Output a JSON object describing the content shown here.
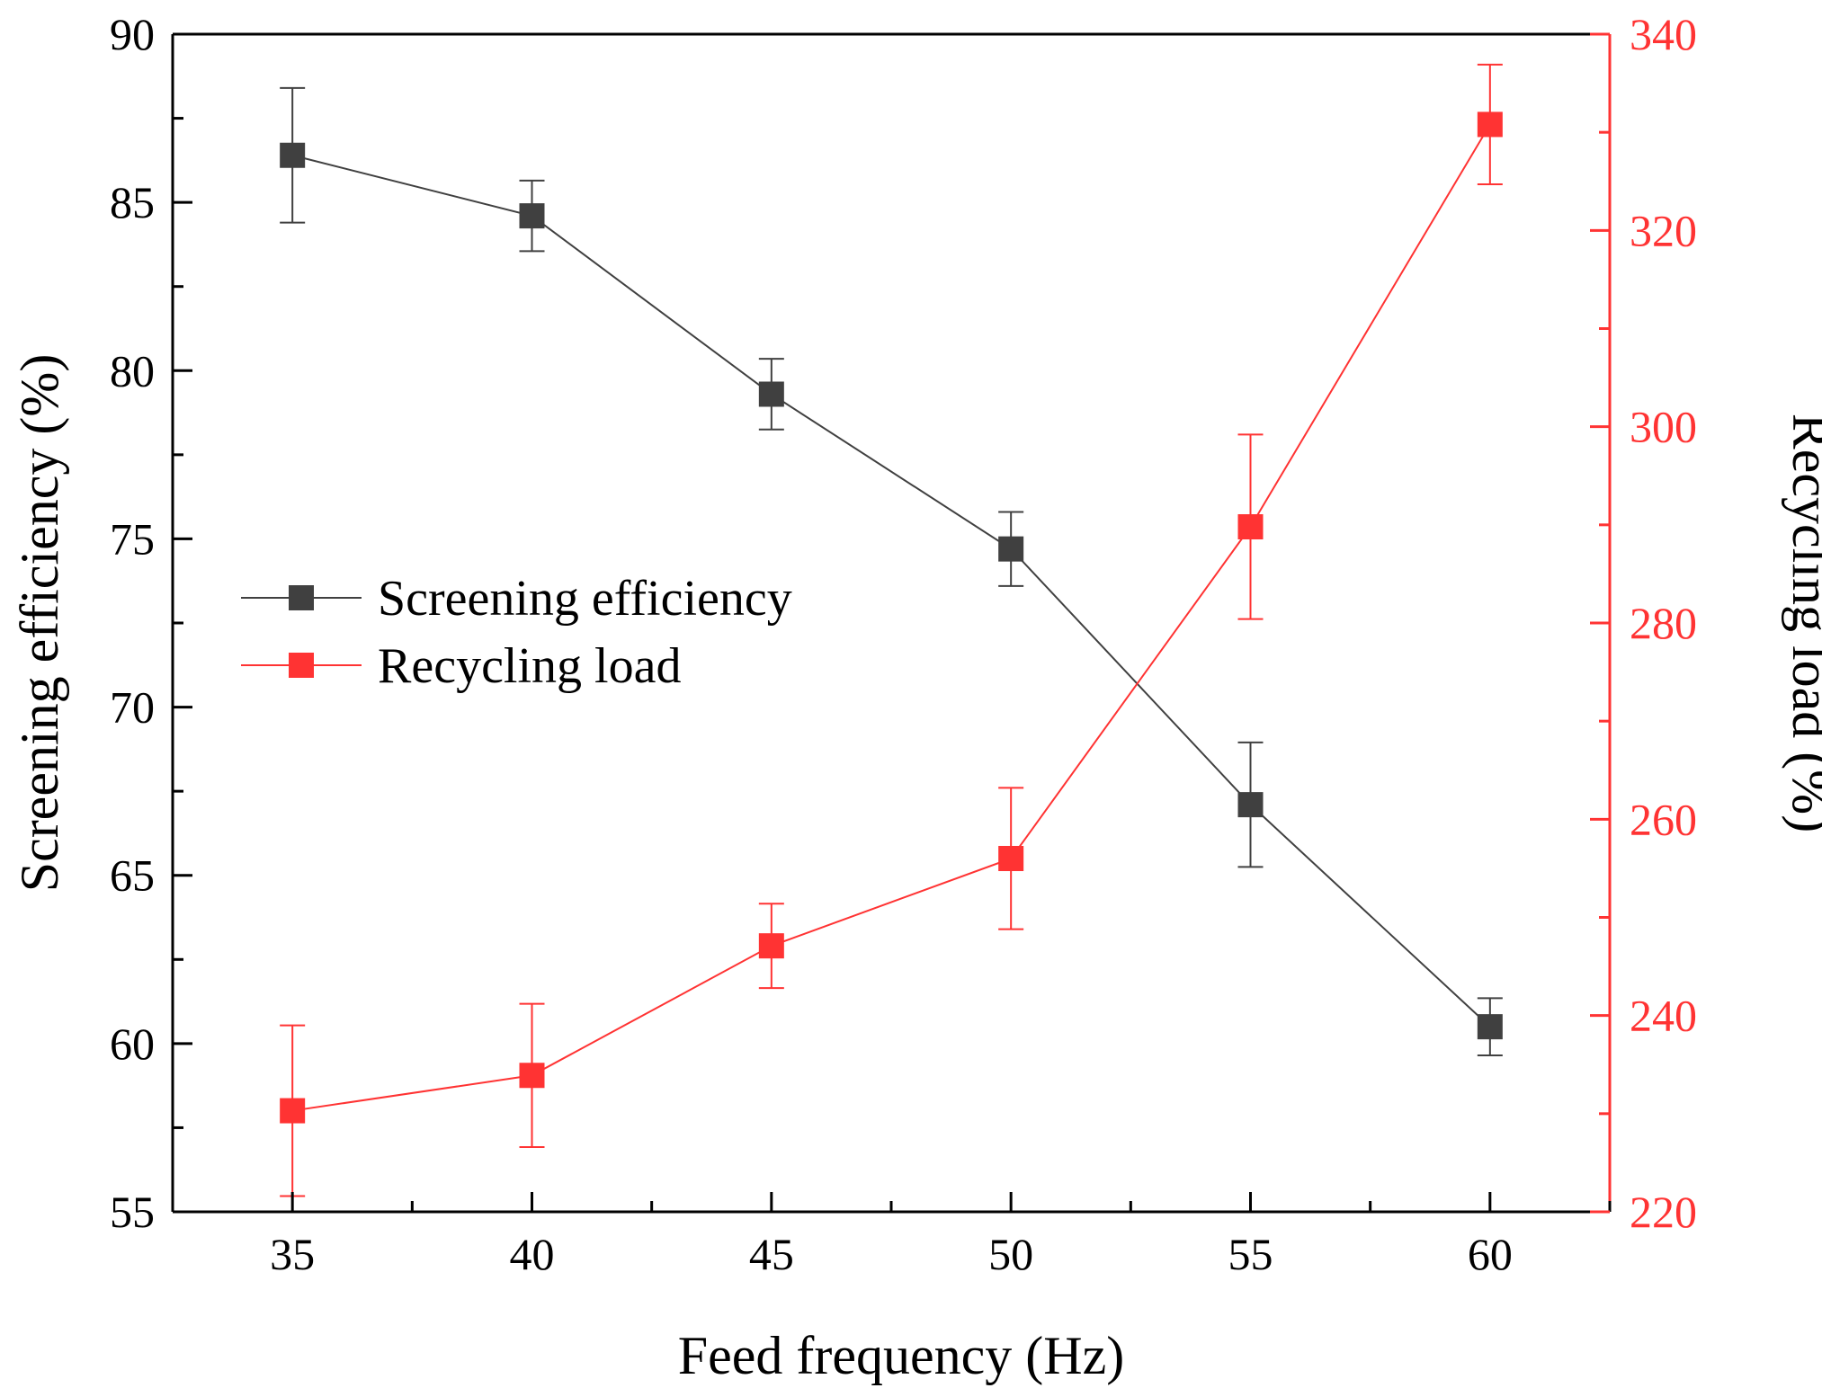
{
  "chart_data": {
    "type": "line",
    "x": [
      35,
      40,
      45,
      50,
      55,
      60
    ],
    "xlabel": "Feed frequency (Hz)",
    "xlim": [
      32.5,
      62.5
    ],
    "xticks": [
      35,
      40,
      45,
      50,
      55,
      60
    ],
    "ylabel_left": "Screening efficiency (%)",
    "ylim_left": [
      55,
      90
    ],
    "yticks_left": [
      55,
      60,
      65,
      70,
      75,
      80,
      85,
      90
    ],
    "ylabel_right": "Recycling load (%)",
    "ylim_right": [
      220,
      340
    ],
    "yticks_right": [
      220,
      240,
      260,
      280,
      300,
      320,
      340
    ],
    "grid": false,
    "legend_position": "center-left",
    "series": [
      {
        "name": "Screening efficiency",
        "axis": "left",
        "color": "#404040",
        "values": [
          86.4,
          84.6,
          79.3,
          74.7,
          67.1,
          60.5
        ],
        "error": [
          2.0,
          1.05,
          1.05,
          1.1,
          1.85,
          0.85
        ]
      },
      {
        "name": "Recycling load",
        "axis": "right",
        "color": "#ff3333",
        "values": [
          230.3,
          233.9,
          247.1,
          256.0,
          289.8,
          330.8
        ],
        "error": [
          8.7,
          7.3,
          4.3,
          7.2,
          9.4,
          6.1
        ]
      }
    ]
  }
}
